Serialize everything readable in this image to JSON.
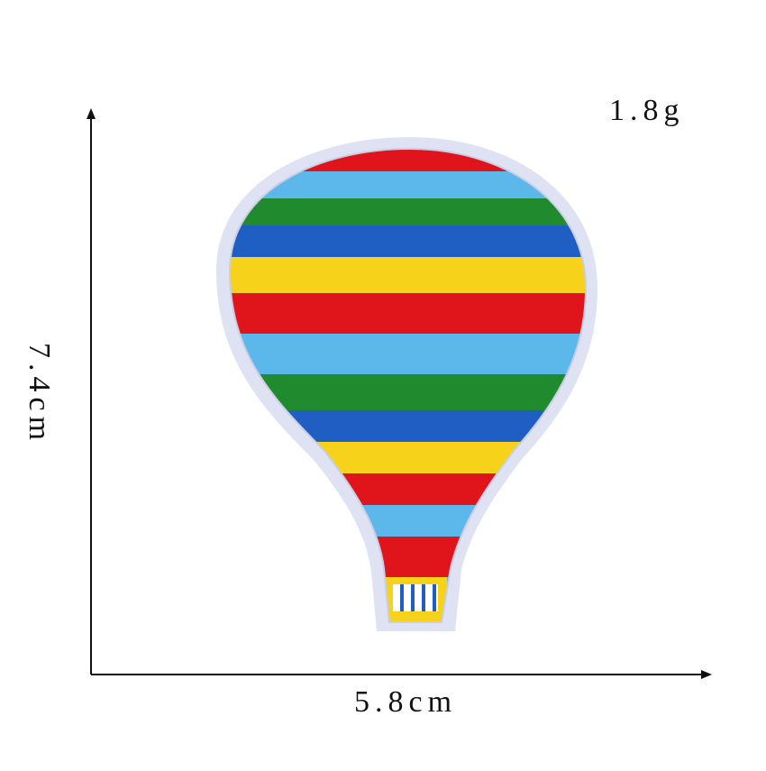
{
  "product": {
    "weight": "1.8g",
    "width": "5.8cm",
    "height": "7.4cm",
    "palette": {
      "red": "#e0151b",
      "yellow": "#f7d21a",
      "blue": "#1f5fc4",
      "light_blue": "#5cb8ea",
      "green": "#1f8a2e",
      "border": "#d9dcef"
    }
  }
}
